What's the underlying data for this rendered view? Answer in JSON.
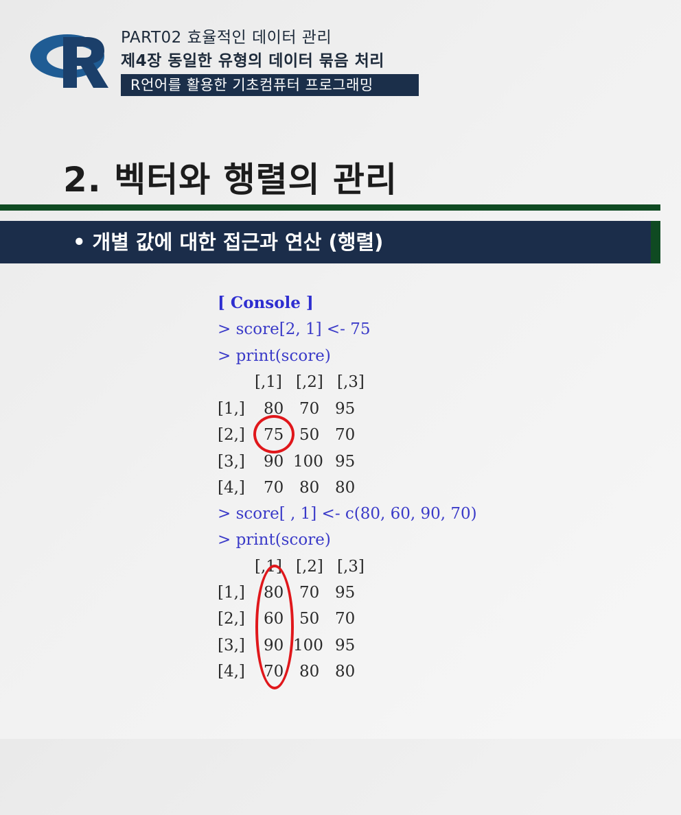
{
  "header": {
    "line1": "PART02 효율적인 데이터 관리",
    "line2": "제4장 동일한 유형의 데이터 묶음 처리",
    "subtitle": "R언어를 활용한 기초컴퓨터 프로그래밍",
    "logo_letter": "R"
  },
  "section_title": "2. 벡터와 행렬의 관리",
  "bullet": {
    "dot": "•",
    "text": "개별 값에 대한 접근과 연산 (행렬)"
  },
  "console": {
    "title": "[ Console ]",
    "cmd1": "> score[2, 1] <- 75",
    "cmd2": "> print(score)",
    "cmd3": "> score[ , 1] <- c(80, 60, 90, 70)",
    "cmd4": "> print(score)",
    "matrix1": {
      "col_headers": [
        "[,1]",
        "[,2]",
        "[,3]"
      ],
      "rows": [
        {
          "label": "[1,]",
          "values": [
            "80",
            "70",
            "95"
          ]
        },
        {
          "label": "[2,]",
          "values": [
            "75",
            "50",
            "70"
          ]
        },
        {
          "label": "[3,]",
          "values": [
            "90",
            "100",
            "95"
          ]
        },
        {
          "label": "[4,]",
          "values": [
            "70",
            "80",
            "80"
          ]
        }
      ]
    },
    "matrix2": {
      "col_headers": [
        "[,1]",
        "[,2]",
        "[,3]"
      ],
      "rows": [
        {
          "label": "[1,]",
          "values": [
            "80",
            "70",
            "95"
          ]
        },
        {
          "label": "[2,]",
          "values": [
            "60",
            "50",
            "70"
          ]
        },
        {
          "label": "[3,]",
          "values": [
            "90",
            "100",
            "95"
          ]
        },
        {
          "label": "[4,]",
          "values": [
            "70",
            "80",
            "80"
          ]
        }
      ]
    }
  },
  "colors": {
    "navy": "#1b2d4a",
    "green": "#0f4a22",
    "console_blue": "#3a3ac8",
    "highlight_red": "#e0171b"
  }
}
